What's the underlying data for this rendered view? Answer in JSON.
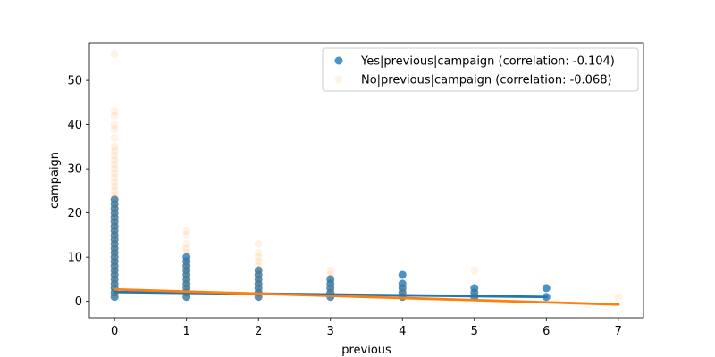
{
  "chart_data": {
    "type": "scatter",
    "title": "",
    "xlabel": "previous",
    "ylabel": "campaign",
    "xlim": [
      -0.35,
      7.35
    ],
    "ylim": [
      -3.7,
      58.5
    ],
    "xticks": [
      0,
      1,
      2,
      3,
      4,
      5,
      6,
      7
    ],
    "yticks": [
      0,
      10,
      20,
      30,
      40,
      50
    ],
    "grid": false,
    "legend_position": "top-right",
    "series": [
      {
        "name": "Yes|previous|campaign (correlation: -0.104)",
        "color": "#1f77b4",
        "point_alpha": 0.8,
        "columns": [
          {
            "x": 0,
            "ymin": 1,
            "ymax": 23
          },
          {
            "x": 1,
            "ymin": 1,
            "ymax": 10
          },
          {
            "x": 2,
            "ymin": 1,
            "ymax": 7
          },
          {
            "x": 3,
            "ymin": 1,
            "ymax": 5
          },
          {
            "x": 4,
            "ymin": 1,
            "ymax": 4
          },
          {
            "x": 5,
            "ymin": 1,
            "ymax": 3
          },
          {
            "x": 6,
            "ymin": 1,
            "ymax": 1
          }
        ],
        "extra_points": [
          {
            "x": 4,
            "y": 6
          },
          {
            "x": 6,
            "y": 3
          }
        ],
        "regression": {
          "x_start": 0,
          "x_end": 6,
          "y_start": 2.1,
          "y_end": 1.0
        }
      },
      {
        "name": "No|previous|campaign (correlation: -0.068)",
        "color": "#ff7f0e",
        "point_alpha": 0.1,
        "columns": [
          {
            "x": 0,
            "ymin": 1,
            "ymax": 35
          },
          {
            "x": 1,
            "ymin": 1,
            "ymax": 9
          },
          {
            "x": 2,
            "ymin": 1,
            "ymax": 8
          },
          {
            "x": 3,
            "ymin": 1,
            "ymax": 4
          },
          {
            "x": 4,
            "ymin": 1,
            "ymax": 3
          },
          {
            "x": 5,
            "ymin": 1,
            "ymax": 2
          },
          {
            "x": 7,
            "ymin": 1,
            "ymax": 1
          }
        ],
        "extra_points": [
          {
            "x": 0,
            "y": 37
          },
          {
            "x": 0,
            "y": 39
          },
          {
            "x": 0,
            "y": 40
          },
          {
            "x": 0,
            "y": 42
          },
          {
            "x": 0,
            "y": 43
          },
          {
            "x": 0,
            "y": 56
          },
          {
            "x": 1,
            "y": 11
          },
          {
            "x": 1,
            "y": 12
          },
          {
            "x": 1,
            "y": 13
          },
          {
            "x": 1,
            "y": 15
          },
          {
            "x": 1,
            "y": 16
          },
          {
            "x": 2,
            "y": 9
          },
          {
            "x": 2,
            "y": 10
          },
          {
            "x": 2,
            "y": 11
          },
          {
            "x": 2,
            "y": 13
          },
          {
            "x": 3,
            "y": 6
          },
          {
            "x": 3,
            "y": 7
          },
          {
            "x": 5,
            "y": 7
          }
        ],
        "regression": {
          "x_start": 0,
          "x_end": 7,
          "y_start": 2.7,
          "y_end": -0.7
        }
      }
    ]
  }
}
